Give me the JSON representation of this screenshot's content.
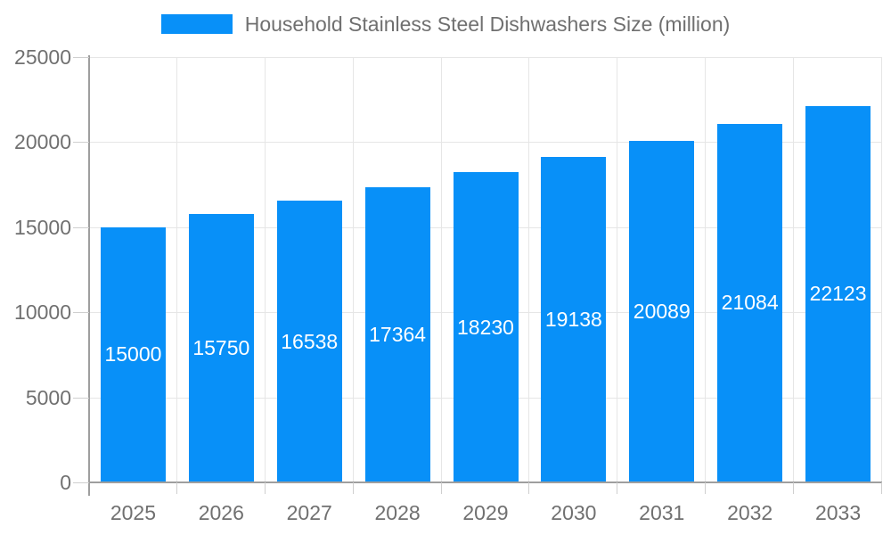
{
  "chart_data": {
    "type": "bar",
    "title": "",
    "legend": "Household Stainless Steel Dishwashers Size (million)",
    "legend_position": "top-center",
    "categories": [
      "2025",
      "2026",
      "2027",
      "2028",
      "2029",
      "2030",
      "2031",
      "2032",
      "2033"
    ],
    "series": [
      {
        "name": "Household Stainless Steel Dishwashers Size (million)",
        "values": [
          15000,
          15750,
          16538,
          17364,
          18230,
          19138,
          20089,
          21084,
          22123
        ]
      }
    ],
    "value_labels": [
      "15000",
      "15750",
      "16538",
      "17364",
      "18230",
      "19138",
      "20089",
      "21084",
      "22123"
    ],
    "xlabel": "",
    "ylabel": "",
    "ylim": [
      0,
      25000
    ],
    "yticks": [
      0,
      5000,
      10000,
      15000,
      20000,
      25000
    ],
    "ytick_labels": [
      "0",
      "5000",
      "10000",
      "15000",
      "20000",
      "25000"
    ],
    "grid": true,
    "colors": {
      "bar": "#0890F8",
      "bar_label": "#ffffff",
      "axis": "#9e9e9e",
      "grid": "#e6e6e6",
      "tick": "#cfcfcf",
      "text": "#707070"
    }
  }
}
